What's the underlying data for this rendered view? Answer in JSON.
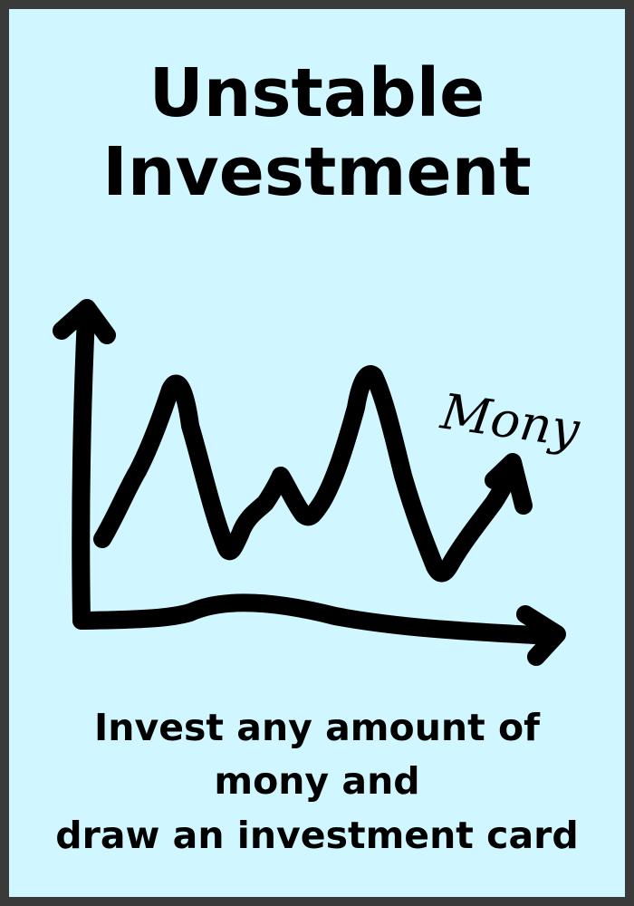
{
  "card": {
    "background": "#d0f6ff",
    "border": "#3a3a3a",
    "title_line1": "Unstable",
    "title_line2": "Investment",
    "sketch": {
      "icon": "hand-drawn-volatile-line-chart",
      "axis_label": "Mony"
    },
    "description_line1": "Invest any amount of",
    "description_line2": "mony and",
    "description_line3": "draw an investment card"
  }
}
